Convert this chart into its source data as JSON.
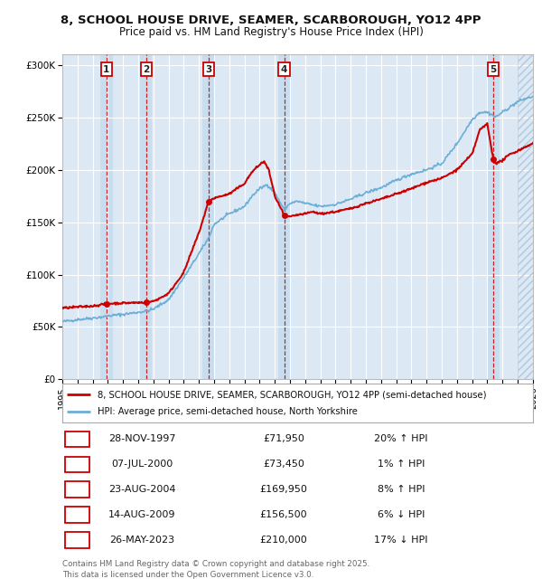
{
  "title_line1": "8, SCHOOL HOUSE DRIVE, SEAMER, SCARBOROUGH, YO12 4PP",
  "title_line2": "Price paid vs. HM Land Registry's House Price Index (HPI)",
  "ylim": [
    0,
    310000
  ],
  "xlim_start": 1995.0,
  "xlim_end": 2026.0,
  "yticks": [
    0,
    50000,
    100000,
    150000,
    200000,
    250000,
    300000
  ],
  "ytick_labels": [
    "£0",
    "£50K",
    "£100K",
    "£150K",
    "£200K",
    "£250K",
    "£300K"
  ],
  "xtick_years": [
    1995,
    1996,
    1997,
    1998,
    1999,
    2000,
    2001,
    2002,
    2003,
    2004,
    2005,
    2006,
    2007,
    2008,
    2009,
    2010,
    2011,
    2012,
    2013,
    2014,
    2015,
    2016,
    2017,
    2018,
    2019,
    2020,
    2021,
    2022,
    2023,
    2024,
    2025,
    2026
  ],
  "background_color": "#ffffff",
  "plot_bg_color": "#dce9f5",
  "grid_color": "#ffffff",
  "sale_dates": [
    1997.91,
    2000.52,
    2004.64,
    2009.62,
    2023.4
  ],
  "sale_prices": [
    71950,
    73450,
    169950,
    156500,
    210000
  ],
  "sale_labels": [
    "1",
    "2",
    "3",
    "4",
    "5"
  ],
  "sale_label_color": "#cc0000",
  "sale_line_color": "#cc0000",
  "hpi_line_color": "#6baed6",
  "price_line_color": "#cc0000",
  "legend_label_price": "8, SCHOOL HOUSE DRIVE, SEAMER, SCARBOROUGH, YO12 4PP (semi-detached house)",
  "legend_label_hpi": "HPI: Average price, semi-detached house, North Yorkshire",
  "footer_text": "Contains HM Land Registry data © Crown copyright and database right 2025.\nThis data is licensed under the Open Government Licence v3.0.",
  "table_rows": [
    [
      "1",
      "28-NOV-1997",
      "£71,950",
      "20% ↑ HPI"
    ],
    [
      "2",
      "07-JUL-2000",
      "£73,450",
      "1% ↑ HPI"
    ],
    [
      "3",
      "23-AUG-2004",
      "£169,950",
      "8% ↑ HPI"
    ],
    [
      "4",
      "14-AUG-2009",
      "£156,500",
      "6% ↓ HPI"
    ],
    [
      "5",
      "26-MAY-2023",
      "£210,000",
      "17% ↓ HPI"
    ]
  ],
  "future_shade_start": 2025.0
}
